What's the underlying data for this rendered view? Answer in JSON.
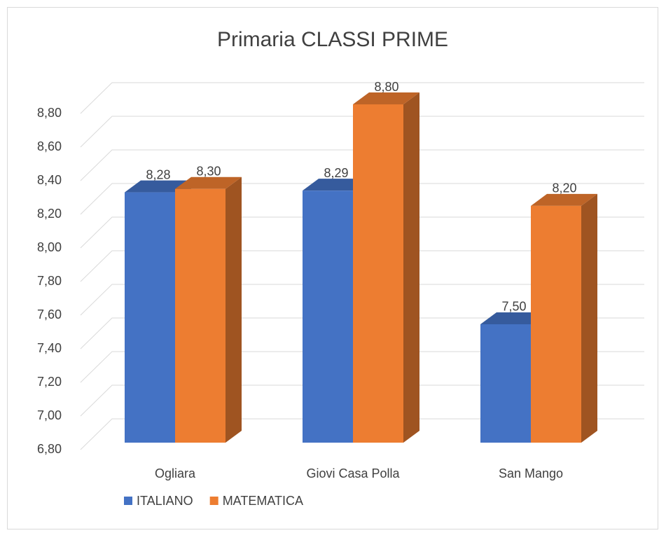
{
  "chart_data": {
    "type": "bar3d",
    "title": "Primaria CLASSI PRIME",
    "categories": [
      "Ogliara",
      "Giovi Casa Polla",
      "San Mango"
    ],
    "series": [
      {
        "name": "ITALIANO",
        "color": "#4472c4",
        "values": [
          8.28,
          8.29,
          7.5
        ],
        "value_labels": [
          "8,28",
          "8,29",
          "7,50"
        ]
      },
      {
        "name": "MATEMATICA",
        "color": "#ed7d31",
        "values": [
          8.3,
          8.8,
          8.2
        ],
        "value_labels": [
          "8,30",
          "8,80",
          "8,20"
        ]
      }
    ],
    "ylim": [
      6.8,
      8.8
    ],
    "yticks": [
      {
        "value": 6.8,
        "label": "6,80"
      },
      {
        "value": 7.0,
        "label": "7,00"
      },
      {
        "value": 7.2,
        "label": "7,20"
      },
      {
        "value": 7.4,
        "label": "7,40"
      },
      {
        "value": 7.6,
        "label": "7,60"
      },
      {
        "value": 7.8,
        "label": "7,80"
      },
      {
        "value": 8.0,
        "label": "8,00"
      },
      {
        "value": 8.2,
        "label": "8,20"
      },
      {
        "value": 8.4,
        "label": "8,40"
      },
      {
        "value": 8.6,
        "label": "8,60"
      },
      {
        "value": 8.8,
        "label": "8,80"
      }
    ],
    "grid": true,
    "legend": "bottom-left"
  }
}
